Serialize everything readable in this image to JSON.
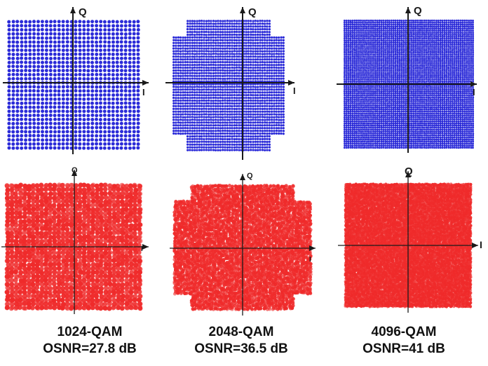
{
  "colors": {
    "ideal_points": "#2b2bd8",
    "received_points": "#ef2b2b",
    "axes": "#1a1a1a",
    "caption_text": "#111111"
  },
  "captions": [
    {
      "format": "1024-QAM",
      "osnr": "OSNR=27.8 dB"
    },
    {
      "format": "2048-QAM",
      "osnr": "OSNR=36.5 dB"
    },
    {
      "format": "4096-QAM",
      "osnr": "OSNR=41 dB"
    }
  ],
  "chart_data": [
    {
      "type": "scatter",
      "title": "",
      "xlabel": "I",
      "ylabel": "Q",
      "modulation": "1024-QAM",
      "grid_size": 32,
      "shape": "square",
      "row": "ideal",
      "color": "#2b2bd8"
    },
    {
      "type": "scatter",
      "title": "",
      "xlabel": "I",
      "ylabel": "Q",
      "modulation": "2048-QAM",
      "grid_size": 48,
      "shape": "cross",
      "row": "ideal",
      "color": "#2b2bd8"
    },
    {
      "type": "scatter",
      "title": "",
      "xlabel": "I",
      "ylabel": "Q",
      "modulation": "4096-QAM",
      "grid_size": 64,
      "shape": "square",
      "row": "ideal",
      "color": "#2b2bd8"
    },
    {
      "type": "scatter",
      "title": "",
      "xlabel": "I",
      "ylabel": "Q",
      "modulation": "1024-QAM",
      "grid_size": 32,
      "shape": "square",
      "row": "received",
      "osnr_db": 27.8,
      "color": "#ef2b2b"
    },
    {
      "type": "scatter",
      "title": "",
      "xlabel": "I",
      "ylabel": "Q",
      "modulation": "2048-QAM",
      "grid_size": 48,
      "shape": "cross",
      "row": "received",
      "osnr_db": 36.5,
      "color": "#ef2b2b"
    },
    {
      "type": "scatter",
      "title": "",
      "xlabel": "I",
      "ylabel": "Q",
      "modulation": "4096-QAM",
      "grid_size": 64,
      "shape": "square",
      "row": "received",
      "osnr_db": 41,
      "color": "#ef2b2b"
    }
  ]
}
